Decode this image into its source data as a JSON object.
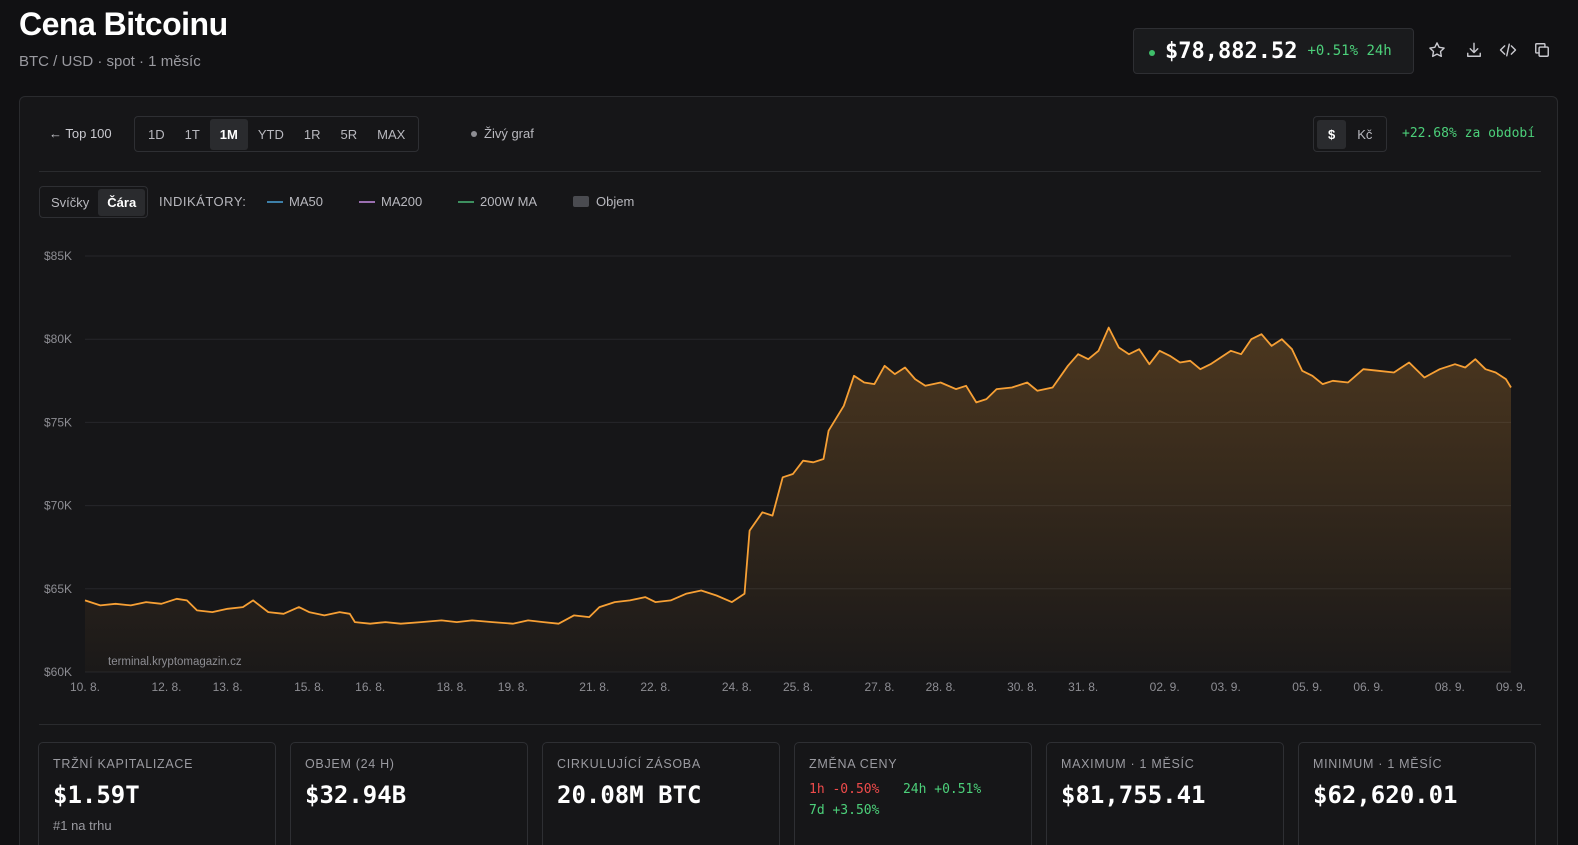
{
  "header": {
    "title": "Cena Bitcoinu",
    "subtitle": "BTC / USD · spot · 1 měsíc",
    "price": "$78,882.52",
    "price_change": "+0.51% 24h"
  },
  "toolbar": {
    "back_label": "← Top 100",
    "ranges": [
      "1D",
      "1T",
      "1M",
      "YTD",
      "1R",
      "5R",
      "MAX"
    ],
    "active_range": "1M",
    "live_label": "Živý graf",
    "currencies": [
      "$",
      "Kč"
    ],
    "active_currency": "$",
    "period_change": "+22.68% za období"
  },
  "chart_controls": {
    "types": [
      "Svíčky",
      "Čára"
    ],
    "active_type": "Čára",
    "indicators_label": "INDIKÁTORY:",
    "indicators": [
      {
        "label": "MA50",
        "color": "#3d7fa8"
      },
      {
        "label": "MA200",
        "color": "#9a6fb0"
      },
      {
        "label": "200W MA",
        "color": "#3d8f5f"
      },
      {
        "label": "Objem",
        "color": "#4a4b50"
      }
    ]
  },
  "chart_data": {
    "type": "area",
    "line_color": "#f7a035",
    "watermark": "terminal.kryptomagazin.cz",
    "ylim": [
      60000,
      85000
    ],
    "y_ticks": [
      "$60K",
      "$65K",
      "$70K",
      "$75K",
      "$80K",
      "$85K"
    ],
    "y_tick_values": [
      60000,
      65000,
      70000,
      75000,
      80000,
      85000
    ],
    "x_ticks": [
      "10. 8.",
      "12. 8.",
      "13. 8.",
      "15. 8.",
      "16. 8.",
      "18. 8.",
      "19. 8.",
      "21. 8.",
      "22. 8.",
      "24. 8.",
      "25. 8.",
      "27. 8.",
      "28. 8.",
      "30. 8.",
      "31. 8.",
      "02. 9.",
      "03. 9.",
      "05. 9.",
      "06. 9.",
      "08. 9.",
      "09. 9."
    ],
    "x_tick_index": [
      0,
      1.6,
      2.8,
      4.4,
      5.6,
      7.2,
      8.4,
      10,
      11.2,
      12.8,
      14,
      15.6,
      16.8,
      18.4,
      19.6,
      21.2,
      22.4,
      24,
      25.2,
      26.8,
      28
    ],
    "x_range": [
      0,
      28
    ],
    "points": [
      [
        0,
        64300
      ],
      [
        0.3,
        64000
      ],
      [
        0.6,
        64100
      ],
      [
        0.9,
        64000
      ],
      [
        1.2,
        64200
      ],
      [
        1.5,
        64100
      ],
      [
        1.8,
        64400
      ],
      [
        2.0,
        64300
      ],
      [
        2.2,
        63700
      ],
      [
        2.5,
        63600
      ],
      [
        2.8,
        63800
      ],
      [
        3.1,
        63900
      ],
      [
        3.3,
        64300
      ],
      [
        3.6,
        63600
      ],
      [
        3.9,
        63500
      ],
      [
        4.2,
        63900
      ],
      [
        4.4,
        63600
      ],
      [
        4.7,
        63400
      ],
      [
        5.0,
        63600
      ],
      [
        5.2,
        63500
      ],
      [
        5.3,
        63000
      ],
      [
        5.6,
        62900
      ],
      [
        5.9,
        63000
      ],
      [
        6.2,
        62900
      ],
      [
        6.6,
        63000
      ],
      [
        7.0,
        63100
      ],
      [
        7.3,
        63000
      ],
      [
        7.6,
        63100
      ],
      [
        8.0,
        63000
      ],
      [
        8.4,
        62900
      ],
      [
        8.7,
        63100
      ],
      [
        9.0,
        63000
      ],
      [
        9.3,
        62900
      ],
      [
        9.6,
        63400
      ],
      [
        9.9,
        63300
      ],
      [
        10.1,
        63900
      ],
      [
        10.4,
        64200
      ],
      [
        10.7,
        64300
      ],
      [
        11.0,
        64500
      ],
      [
        11.2,
        64200
      ],
      [
        11.5,
        64300
      ],
      [
        11.8,
        64700
      ],
      [
        12.1,
        64900
      ],
      [
        12.4,
        64600
      ],
      [
        12.7,
        64200
      ],
      [
        12.95,
        64700
      ],
      [
        13.05,
        68500
      ],
      [
        13.3,
        69600
      ],
      [
        13.5,
        69400
      ],
      [
        13.7,
        71700
      ],
      [
        13.9,
        71900
      ],
      [
        14.1,
        72700
      ],
      [
        14.3,
        72600
      ],
      [
        14.5,
        72800
      ],
      [
        14.6,
        74500
      ],
      [
        14.9,
        76000
      ],
      [
        15.1,
        77800
      ],
      [
        15.3,
        77400
      ],
      [
        15.5,
        77300
      ],
      [
        15.7,
        78400
      ],
      [
        15.9,
        77900
      ],
      [
        16.1,
        78300
      ],
      [
        16.3,
        77600
      ],
      [
        16.5,
        77200
      ],
      [
        16.8,
        77400
      ],
      [
        17.1,
        77000
      ],
      [
        17.3,
        77200
      ],
      [
        17.5,
        76200
      ],
      [
        17.7,
        76400
      ],
      [
        17.9,
        77000
      ],
      [
        18.2,
        77100
      ],
      [
        18.5,
        77400
      ],
      [
        18.7,
        76900
      ],
      [
        19.0,
        77100
      ],
      [
        19.3,
        78400
      ],
      [
        19.5,
        79100
      ],
      [
        19.7,
        78800
      ],
      [
        19.9,
        79300
      ],
      [
        20.1,
        80700
      ],
      [
        20.3,
        79500
      ],
      [
        20.5,
        79100
      ],
      [
        20.7,
        79400
      ],
      [
        20.9,
        78500
      ],
      [
        21.1,
        79300
      ],
      [
        21.3,
        79000
      ],
      [
        21.5,
        78600
      ],
      [
        21.7,
        78700
      ],
      [
        21.9,
        78200
      ],
      [
        22.1,
        78500
      ],
      [
        22.3,
        78900
      ],
      [
        22.5,
        79300
      ],
      [
        22.7,
        79100
      ],
      [
        22.9,
        80000
      ],
      [
        23.1,
        80300
      ],
      [
        23.3,
        79600
      ],
      [
        23.5,
        80000
      ],
      [
        23.7,
        79400
      ],
      [
        23.9,
        78100
      ],
      [
        24.1,
        77800
      ],
      [
        24.3,
        77300
      ],
      [
        24.5,
        77500
      ],
      [
        24.8,
        77400
      ],
      [
        25.1,
        78200
      ],
      [
        25.4,
        78100
      ],
      [
        25.7,
        78000
      ],
      [
        26.0,
        78600
      ],
      [
        26.3,
        77700
      ],
      [
        26.6,
        78200
      ],
      [
        26.9,
        78500
      ],
      [
        27.1,
        78300
      ],
      [
        27.3,
        78800
      ],
      [
        27.5,
        78200
      ],
      [
        27.7,
        78000
      ],
      [
        27.9,
        77600
      ],
      [
        28.0,
        77100
      ]
    ]
  },
  "stats": [
    {
      "label": "TRŽNÍ KAPITALIZACE",
      "value": "$1.59T",
      "sub": "#1 na trhu"
    },
    {
      "label": "OBJEM (24 H)",
      "value": "$32.94B"
    },
    {
      "label": "CIRKULUJÍCÍ ZÁSOBA",
      "value": "20.08M BTC"
    },
    {
      "label": "ZMĚNA CENY",
      "changes": [
        {
          "period": "1h",
          "value": "-0.50%",
          "dir": "neg"
        },
        {
          "period": "24h",
          "value": "+0.51%",
          "dir": "pos"
        },
        {
          "period": "7d",
          "value": "+3.50%",
          "dir": "pos"
        }
      ]
    },
    {
      "label": "MAXIMUM · 1 MĚSÍC",
      "value": "$81,755.41"
    },
    {
      "label": "MINIMUM · 1 MĚSÍC",
      "value": "$62,620.01"
    }
  ]
}
